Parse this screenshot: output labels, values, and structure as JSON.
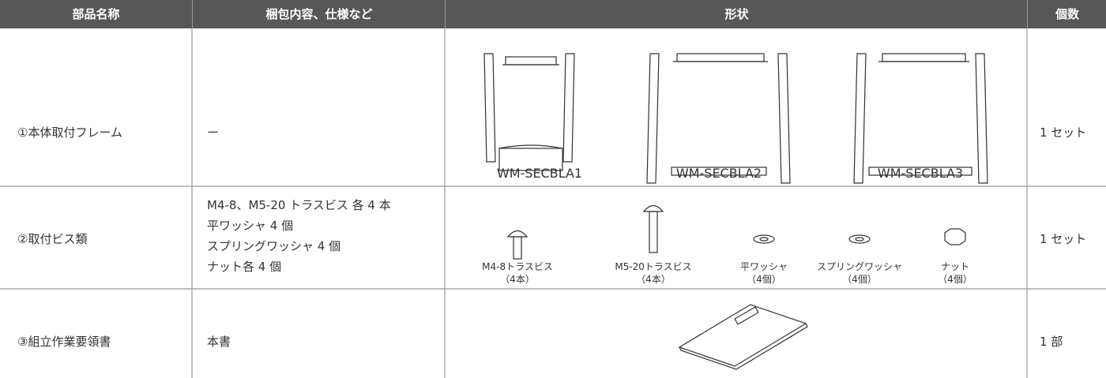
{
  "table": {
    "header": [
      "部品名称",
      "梱包内容、仕様など",
      "形状",
      "個数"
    ],
    "rows": [
      {
        "name": "①本体取付フレーム",
        "spec": [
          "ー"
        ],
        "shapes": [
          {
            "label": "WM-SECBLA1"
          },
          {
            "label": "WM-SECBLA2"
          },
          {
            "label": "WM-SECBLA3"
          }
        ],
        "qty": "1 セット"
      },
      {
        "name": "②取付ビス類",
        "spec": [
          "M4-8、M5-20 トラスビス 各 4 本",
          "平ワッシャ 4 個",
          "スプリングワッシャ 4 個",
          "ナット各 4 個"
        ],
        "shapes": [
          {
            "label": "M4-8トラスビス",
            "count": "（4本）"
          },
          {
            "label": "M5-20トラスビス",
            "count": "（4本）"
          },
          {
            "label": "平ワッシャ",
            "count": "（4個）"
          },
          {
            "label": "スプリングワッシャ",
            "count": "（4個）"
          },
          {
            "label": "ナット",
            "count": "（4個）"
          }
        ],
        "qty": "1 セット"
      },
      {
        "name": "③組立作業要領書",
        "spec": [
          "本書"
        ],
        "qty": "1 部"
      }
    ]
  }
}
